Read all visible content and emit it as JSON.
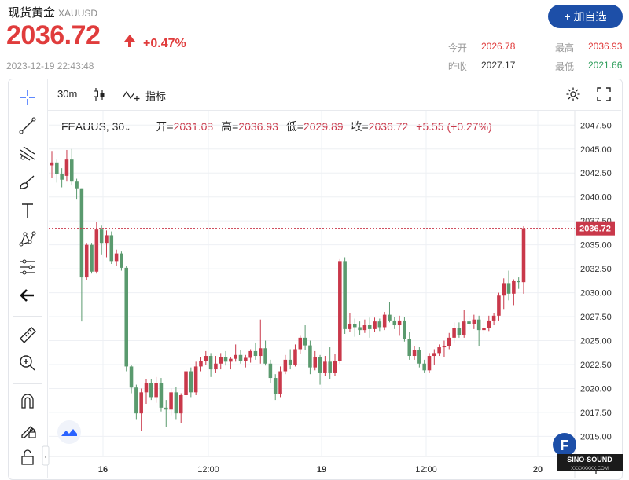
{
  "header": {
    "title": "现货黄金",
    "code": "XAUUSD",
    "price": "2036.72",
    "change": "+0.47%",
    "timestamp": "2023-12-19 22:43:48",
    "add_button": "+ 加自选",
    "stats": {
      "open_label": "今开",
      "open": "2026.78",
      "high_label": "最高",
      "high": "2036.93",
      "prev_label": "昨收",
      "prev": "2027.17",
      "low_label": "最低",
      "low": "2021.66"
    }
  },
  "topbar": {
    "interval": "30m",
    "indicators_label": "指标"
  },
  "legend": {
    "symbol": "FEAUUS, 30",
    "open_label": "开=",
    "open": "2031.08",
    "high_label": "高=",
    "high": "2036.93",
    "low_label": "低=",
    "low": "2029.89",
    "close_label": "收=",
    "close": "2036.72",
    "change": "+5.55 (+0.27%)"
  },
  "colors": {
    "up": "#c9384a",
    "down": "#5a9a6e",
    "accent": "#1d4fa8",
    "price_red": "#e03c3c"
  },
  "chart_data": {
    "type": "candlestick",
    "x_tick_labels": [
      "16",
      "12:00",
      "19",
      "12:00",
      "20"
    ],
    "y_tick_labels": [
      "2047.50",
      "2045.00",
      "2042.50",
      "2040.00",
      "2037.50",
      "2035.00",
      "2032.50",
      "2030.00",
      "2027.50",
      "2025.00",
      "2022.50",
      "2020.00",
      "2017.50",
      "2015.00"
    ],
    "ylim": [
      2012.9,
      2049.0
    ],
    "current_price_label": "2036.72",
    "current_price": 2036.72,
    "candles": [
      [
        2043.3,
        2044.8,
        2042.0,
        2043.6
      ],
      [
        2043.6,
        2043.9,
        2041.5,
        2042.4
      ],
      [
        2042.4,
        2043.0,
        2041.0,
        2041.8
      ],
      [
        2042.2,
        2044.9,
        2041.6,
        2043.9
      ],
      [
        2043.9,
        2045.0,
        2041.2,
        2041.6
      ],
      [
        2041.6,
        2041.9,
        2039.8,
        2040.9
      ],
      [
        2040.9,
        2040.9,
        2027.0,
        2031.6
      ],
      [
        2031.6,
        2035.2,
        2031.3,
        2035.0
      ],
      [
        2035.0,
        2035.2,
        2032.0,
        2032.2
      ],
      [
        2032.2,
        2037.4,
        2032.0,
        2036.6
      ],
      [
        2036.6,
        2037.0,
        2034.0,
        2035.2
      ],
      [
        2035.2,
        2036.5,
        2033.7,
        2036.0
      ],
      [
        2036.0,
        2036.4,
        2033.0,
        2033.3
      ],
      [
        2033.3,
        2034.5,
        2032.8,
        2034.1
      ],
      [
        2034.1,
        2034.3,
        2032.3,
        2032.6
      ],
      [
        2032.6,
        2032.8,
        2021.8,
        2022.3
      ],
      [
        2022.3,
        2022.5,
        2019.5,
        2020.1
      ],
      [
        2020.1,
        2020.4,
        2016.8,
        2017.4
      ],
      [
        2017.4,
        2020.0,
        2015.6,
        2019.6
      ],
      [
        2019.6,
        2021.0,
        2018.4,
        2020.6
      ],
      [
        2020.6,
        2021.0,
        2018.8,
        2019.1
      ],
      [
        2019.1,
        2021.2,
        2018.5,
        2020.6
      ],
      [
        2020.6,
        2021.1,
        2017.6,
        2018.0
      ],
      [
        2018.0,
        2018.8,
        2016.0,
        2017.8
      ],
      [
        2017.8,
        2020.0,
        2017.2,
        2019.6
      ],
      [
        2019.6,
        2020.2,
        2016.8,
        2017.4
      ],
      [
        2017.4,
        2019.5,
        2016.4,
        2019.3
      ],
      [
        2019.3,
        2022.0,
        2019.0,
        2021.8
      ],
      [
        2021.8,
        2022.2,
        2019.1,
        2019.6
      ],
      [
        2019.6,
        2022.8,
        2019.3,
        2022.3
      ],
      [
        2022.3,
        2023.3,
        2021.8,
        2022.9
      ],
      [
        2022.9,
        2023.9,
        2022.5,
        2023.4
      ],
      [
        2023.4,
        2023.7,
        2021.2,
        2022.0
      ],
      [
        2022.0,
        2023.4,
        2021.6,
        2022.6
      ],
      [
        2022.6,
        2023.7,
        2022.0,
        2023.3
      ],
      [
        2023.3,
        2023.9,
        2022.4,
        2022.8
      ],
      [
        2022.8,
        2023.3,
        2022.0,
        2023.1
      ],
      [
        2023.1,
        2024.6,
        2022.8,
        2023.5
      ],
      [
        2023.5,
        2024.0,
        2022.6,
        2022.9
      ],
      [
        2022.9,
        2023.5,
        2022.2,
        2023.2
      ],
      [
        2023.2,
        2024.1,
        2022.7,
        2023.9
      ],
      [
        2023.9,
        2024.8,
        2023.0,
        2023.4
      ],
      [
        2023.4,
        2027.2,
        2022.6,
        2024.2
      ],
      [
        2024.2,
        2025.0,
        2022.4,
        2022.6
      ],
      [
        2022.6,
        2023.0,
        2020.6,
        2021.1
      ],
      [
        2021.1,
        2021.5,
        2018.8,
        2019.4
      ],
      [
        2019.4,
        2022.3,
        2019.1,
        2021.8
      ],
      [
        2021.8,
        2023.5,
        2021.5,
        2023.0
      ],
      [
        2023.0,
        2024.1,
        2022.0,
        2022.5
      ],
      [
        2022.5,
        2024.6,
        2022.3,
        2024.1
      ],
      [
        2024.1,
        2025.5,
        2023.6,
        2025.3
      ],
      [
        2025.3,
        2026.6,
        2024.0,
        2024.5
      ],
      [
        2024.5,
        2025.0,
        2021.5,
        2022.2
      ],
      [
        2022.2,
        2023.9,
        2021.9,
        2023.3
      ],
      [
        2023.3,
        2023.5,
        2020.4,
        2021.6
      ],
      [
        2021.6,
        2023.4,
        2021.3,
        2022.8
      ],
      [
        2022.8,
        2024.3,
        2021.0,
        2021.6
      ],
      [
        2021.6,
        2023.6,
        2021.3,
        2022.9
      ],
      [
        2022.9,
        2033.5,
        2022.6,
        2033.3
      ],
      [
        2033.3,
        2033.7,
        2025.7,
        2026.2
      ],
      [
        2026.2,
        2027.9,
        2025.9,
        2026.7
      ],
      [
        2026.7,
        2027.3,
        2025.4,
        2026.4
      ],
      [
        2026.4,
        2027.0,
        2025.6,
        2026.1
      ],
      [
        2026.1,
        2027.2,
        2025.8,
        2026.6
      ],
      [
        2026.6,
        2027.4,
        2025.3,
        2026.2
      ],
      [
        2026.2,
        2027.4,
        2025.9,
        2027.0
      ],
      [
        2027.0,
        2027.3,
        2026.0,
        2026.4
      ],
      [
        2026.4,
        2028.0,
        2026.1,
        2027.7
      ],
      [
        2027.7,
        2029.0,
        2026.9,
        2027.1
      ],
      [
        2027.1,
        2027.5,
        2026.2,
        2026.6
      ],
      [
        2026.6,
        2027.6,
        2025.5,
        2027.1
      ],
      [
        2027.1,
        2027.5,
        2024.9,
        2025.2
      ],
      [
        2025.2,
        2025.9,
        2023.0,
        2023.4
      ],
      [
        2023.4,
        2024.4,
        2023.0,
        2024.0
      ],
      [
        2024.0,
        2024.3,
        2022.2,
        2022.6
      ],
      [
        2022.6,
        2023.0,
        2021.6,
        2021.9
      ],
      [
        2021.9,
        2023.7,
        2021.6,
        2023.4
      ],
      [
        2023.4,
        2024.1,
        2022.5,
        2023.7
      ],
      [
        2023.7,
        2024.6,
        2023.4,
        2024.3
      ],
      [
        2024.3,
        2025.0,
        2023.3,
        2024.4
      ],
      [
        2024.4,
        2025.8,
        2024.1,
        2025.3
      ],
      [
        2025.3,
        2026.9,
        2024.8,
        2026.3
      ],
      [
        2026.3,
        2026.9,
        2025.3,
        2025.6
      ],
      [
        2025.6,
        2028.2,
        2025.3,
        2027.0
      ],
      [
        2027.0,
        2027.5,
        2026.1,
        2026.7
      ],
      [
        2026.7,
        2027.7,
        2026.2,
        2027.2
      ],
      [
        2027.2,
        2027.6,
        2024.4,
        2026.1
      ],
      [
        2026.1,
        2027.2,
        2025.7,
        2026.3
      ],
      [
        2026.3,
        2027.6,
        2026.0,
        2027.1
      ],
      [
        2027.1,
        2027.9,
        2026.6,
        2027.6
      ],
      [
        2027.6,
        2030.0,
        2027.1,
        2029.7
      ],
      [
        2029.7,
        2031.5,
        2028.3,
        2031.0
      ],
      [
        2031.0,
        2032.3,
        2029.2,
        2029.9
      ],
      [
        2029.9,
        2031.4,
        2028.7,
        2031.2
      ],
      [
        2031.2,
        2031.6,
        2030.4,
        2031.1
      ],
      [
        2031.1,
        2036.93,
        2029.89,
        2036.72
      ]
    ]
  }
}
